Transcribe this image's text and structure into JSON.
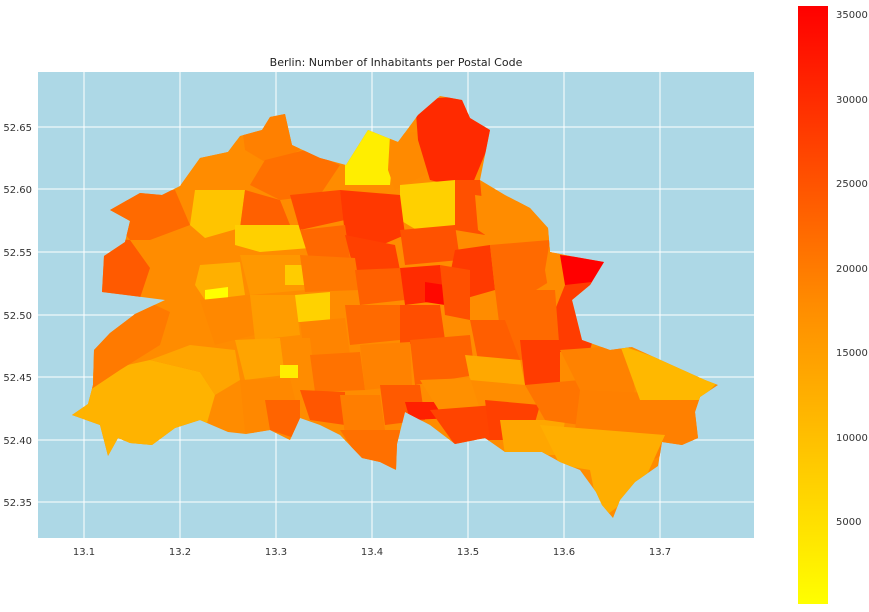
{
  "title": "Berlin: Number of Inhabitants per Postal Code",
  "map": {
    "x_ticks": [
      "13.1",
      "13.2",
      "13.3",
      "13.4",
      "13.5",
      "13.6",
      "13.7"
    ],
    "y_ticks": [
      "52.65",
      "52.60",
      "52.55",
      "52.50",
      "52.45",
      "52.40",
      "52.35"
    ],
    "background_color": "#add8e6",
    "grid_color": "#ffffff"
  },
  "colorbar": {
    "colormap": "autumn_r",
    "ticks": [
      "5000",
      "10000",
      "15000",
      "20000",
      "25000",
      "30000",
      "35000"
    ],
    "low_color": "#ffff00",
    "high_color": "#ff0000"
  }
}
